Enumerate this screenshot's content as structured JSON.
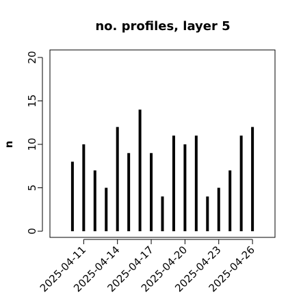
{
  "chart_data": {
    "type": "bar",
    "title": "no. profiles, layer 5",
    "y_label": "n",
    "x": [
      "2025-04-10",
      "2025-04-11",
      "2025-04-12",
      "2025-04-13",
      "2025-04-14",
      "2025-04-15",
      "2025-04-16",
      "2025-04-17",
      "2025-04-18",
      "2025-04-19",
      "2025-04-20",
      "2025-04-21",
      "2025-04-22",
      "2025-04-23",
      "2025-04-24",
      "2025-04-25",
      "2025-04-26"
    ],
    "values": [
      8,
      10,
      7,
      5,
      12,
      9,
      14,
      9,
      4,
      11,
      10,
      11,
      4,
      5,
      7,
      11,
      12
    ],
    "color": "#000000",
    "xlim": [
      "2025-04-08",
      "2025-04-28"
    ],
    "xticks": [
      "2025-04-11",
      "2025-04-14",
      "2025-04-17",
      "2025-04-20",
      "2025-04-23",
      "2025-04-26"
    ],
    "xtick_colors": [
      "#000000",
      "#000000",
      "#228b22",
      "#000000",
      "#000000",
      "#000000"
    ],
    "ylim": [
      0,
      20
    ],
    "yticks": [
      0,
      5,
      10,
      15,
      20
    ],
    "grid": false
  }
}
